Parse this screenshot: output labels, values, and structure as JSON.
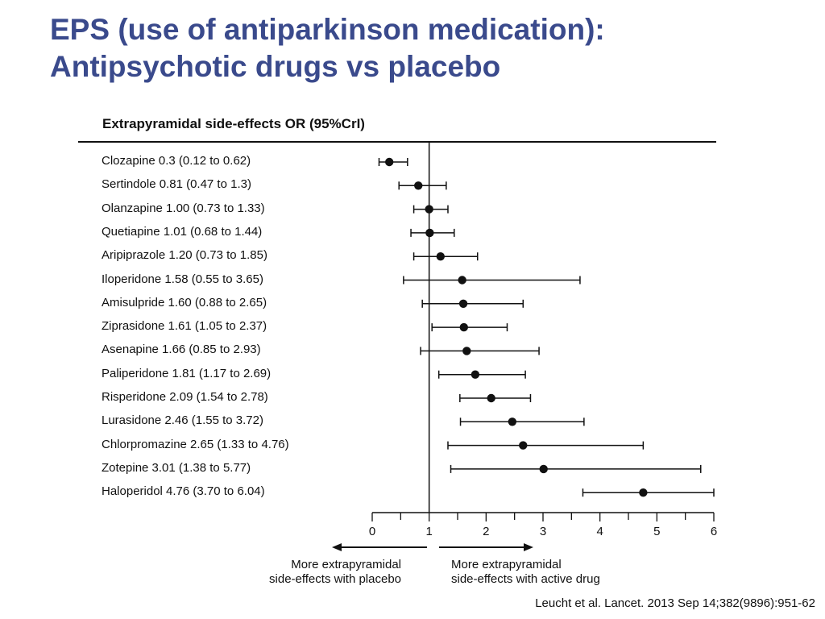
{
  "title": {
    "line1": "EPS (use of antiparkinson medication):",
    "line2": "Antipsychotic drugs vs placebo"
  },
  "colors": {
    "title": "#3a4a8c",
    "marks": "#111111"
  },
  "chart_data": {
    "type": "forest",
    "title": "Extrapyramidal side-effects OR (95%CrI)",
    "xlim": [
      0,
      6
    ],
    "x_ticks": [
      "0",
      "1",
      "2",
      "3",
      "4",
      "5",
      "6"
    ],
    "minor_tick_step": 0.5,
    "reference_line": 1,
    "rows": [
      {
        "label": "Clozapine 0.3 (0.12 to 0.62)",
        "or": 0.3,
        "lo": 0.12,
        "hi": 0.62
      },
      {
        "label": "Sertindole 0.81 (0.47 to 1.3)",
        "or": 0.81,
        "lo": 0.47,
        "hi": 1.3
      },
      {
        "label": "Olanzapine 1.00 (0.73 to 1.33)",
        "or": 1.0,
        "lo": 0.73,
        "hi": 1.33
      },
      {
        "label": "Quetiapine 1.01 (0.68 to 1.44)",
        "or": 1.01,
        "lo": 0.68,
        "hi": 1.44
      },
      {
        "label": "Aripiprazole 1.20 (0.73 to 1.85)",
        "or": 1.2,
        "lo": 0.73,
        "hi": 1.85
      },
      {
        "label": "Iloperidone 1.58 (0.55 to 3.65)",
        "or": 1.58,
        "lo": 0.55,
        "hi": 3.65
      },
      {
        "label": "Amisulpride 1.60 (0.88 to 2.65)",
        "or": 1.6,
        "lo": 0.88,
        "hi": 2.65
      },
      {
        "label": "Ziprasidone 1.61 (1.05 to 2.37)",
        "or": 1.61,
        "lo": 1.05,
        "hi": 2.37
      },
      {
        "label": "Asenapine 1.66 (0.85 to 2.93)",
        "or": 1.66,
        "lo": 0.85,
        "hi": 2.93
      },
      {
        "label": "Paliperidone 1.81 (1.17 to 2.69)",
        "or": 1.81,
        "lo": 1.17,
        "hi": 2.69
      },
      {
        "label": "Risperidone 2.09 (1.54 to 2.78)",
        "or": 2.09,
        "lo": 1.54,
        "hi": 2.78
      },
      {
        "label": "Lurasidone 2.46 (1.55 to 3.72)",
        "or": 2.46,
        "lo": 1.55,
        "hi": 3.72
      },
      {
        "label": "Chlorpromazine 2.65 (1.33 to 4.76)",
        "or": 2.65,
        "lo": 1.33,
        "hi": 4.76
      },
      {
        "label": "Zotepine 3.01 (1.38 to 5.77)",
        "or": 3.01,
        "lo": 1.38,
        "hi": 5.77
      },
      {
        "label": "Haloperidol 4.76 (3.70 to 6.04)",
        "or": 4.76,
        "lo": 3.7,
        "hi": 6.04
      }
    ],
    "direction_left": {
      "line1": "More extrapyramidal",
      "line2": "side-effects with placebo"
    },
    "direction_right": {
      "line1": "More extrapyramidal",
      "line2": "side-effects with active drug"
    }
  },
  "citation": "Leucht et al. Lancet. 2013 Sep 14;382(9896):951-62"
}
